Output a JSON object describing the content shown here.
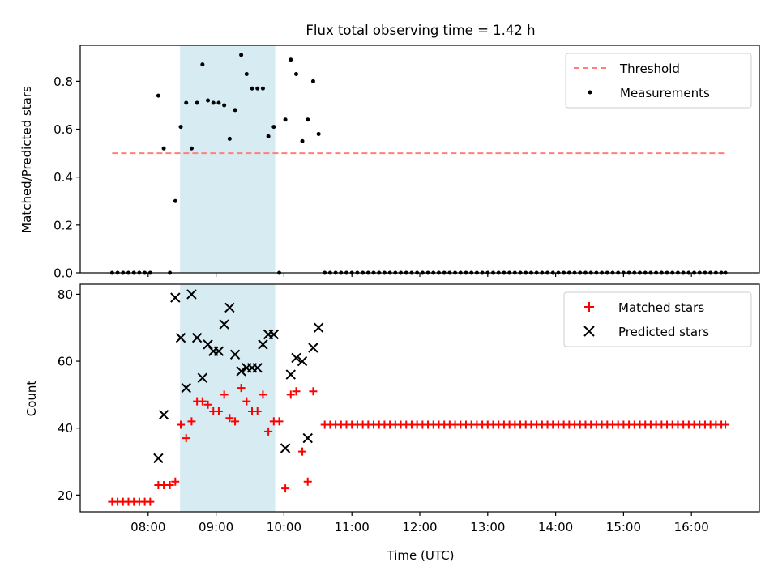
{
  "title": "Flux total observing time = 1.42 h",
  "xlabel": "Time (UTC)",
  "x_ticks": [
    "08:00",
    "09:00",
    "10:00",
    "11:00",
    "12:00",
    "13:00",
    "14:00",
    "15:00",
    "16:00"
  ],
  "x_tick_hours": [
    8,
    9,
    10,
    11,
    12,
    13,
    14,
    15,
    16
  ],
  "x_range_hours": [
    7.0,
    17.0
  ],
  "shaded_interval_hours": [
    8.47,
    9.87
  ],
  "colors": {
    "threshold": "#ff7f7f",
    "measurement": "#000000",
    "matched": "#ff0000",
    "predicted": "#000000",
    "shade": "#add8e6"
  },
  "chart_data": [
    {
      "type": "scatter",
      "title": "Flux total observing time = 1.42 h",
      "xlabel": "",
      "ylabel": "Matched/Predicted stars",
      "ylim": [
        0,
        0.95
      ],
      "y_ticks": [
        "0.0",
        "0.2",
        "0.4",
        "0.6",
        "0.8"
      ],
      "y_tick_values": [
        0,
        0.2,
        0.4,
        0.6,
        0.8
      ],
      "legend_position": "top-right",
      "threshold": {
        "name": "Threshold",
        "value": 0.5,
        "x_range": [
          7.47,
          16.5
        ]
      },
      "measurements": {
        "name": "Measurements",
        "points": [
          [
            7.47,
            0
          ],
          [
            7.55,
            0
          ],
          [
            7.63,
            0
          ],
          [
            7.71,
            0
          ],
          [
            7.79,
            0
          ],
          [
            7.87,
            0
          ],
          [
            7.95,
            0
          ],
          [
            8.03,
            0
          ],
          [
            8.15,
            0.74
          ],
          [
            8.23,
            0.52
          ],
          [
            8.32,
            0
          ],
          [
            8.4,
            0.3
          ],
          [
            8.48,
            0.61
          ],
          [
            8.56,
            0.71
          ],
          [
            8.64,
            0.52
          ],
          [
            8.72,
            0.71
          ],
          [
            8.8,
            0.87
          ],
          [
            8.88,
            0.72
          ],
          [
            8.96,
            0.71
          ],
          [
            9.04,
            0.71
          ],
          [
            9.12,
            0.7
          ],
          [
            9.2,
            0.56
          ],
          [
            9.28,
            0.68
          ],
          [
            9.37,
            0.91
          ],
          [
            9.45,
            0.83
          ],
          [
            9.53,
            0.77
          ],
          [
            9.61,
            0.77
          ],
          [
            9.69,
            0.77
          ],
          [
            9.77,
            0.57
          ],
          [
            9.85,
            0.61
          ],
          [
            9.93,
            0
          ],
          [
            10.02,
            0.64
          ],
          [
            10.1,
            0.89
          ],
          [
            10.18,
            0.83
          ],
          [
            10.27,
            0.55
          ],
          [
            10.35,
            0.64
          ],
          [
            10.43,
            0.8
          ],
          [
            10.51,
            0.58
          ],
          [
            10.6,
            0
          ],
          [
            10.68,
            0
          ],
          [
            10.76,
            0
          ],
          [
            10.84,
            0
          ],
          [
            10.92,
            0
          ],
          [
            11.0,
            0
          ],
          [
            11.08,
            0
          ],
          [
            11.16,
            0
          ],
          [
            11.24,
            0
          ],
          [
            11.32,
            0
          ],
          [
            11.4,
            0
          ],
          [
            11.48,
            0
          ],
          [
            11.56,
            0
          ],
          [
            11.64,
            0
          ],
          [
            11.72,
            0
          ],
          [
            11.8,
            0
          ],
          [
            11.88,
            0
          ],
          [
            11.96,
            0
          ],
          [
            12.04,
            0
          ],
          [
            12.12,
            0
          ],
          [
            12.2,
            0
          ],
          [
            12.28,
            0
          ],
          [
            12.36,
            0
          ],
          [
            12.44,
            0
          ],
          [
            12.52,
            0
          ],
          [
            12.6,
            0
          ],
          [
            12.68,
            0
          ],
          [
            12.76,
            0
          ],
          [
            12.84,
            0
          ],
          [
            12.92,
            0
          ],
          [
            13.0,
            0
          ],
          [
            13.08,
            0
          ],
          [
            13.16,
            0
          ],
          [
            13.24,
            0
          ],
          [
            13.32,
            0
          ],
          [
            13.4,
            0
          ],
          [
            13.48,
            0
          ],
          [
            13.56,
            0
          ],
          [
            13.64,
            0
          ],
          [
            13.72,
            0
          ],
          [
            13.8,
            0
          ],
          [
            13.88,
            0
          ],
          [
            13.96,
            0
          ],
          [
            14.04,
            0
          ],
          [
            14.12,
            0
          ],
          [
            14.2,
            0
          ],
          [
            14.28,
            0
          ],
          [
            14.36,
            0
          ],
          [
            14.44,
            0
          ],
          [
            14.52,
            0
          ],
          [
            14.6,
            0
          ],
          [
            14.68,
            0
          ],
          [
            14.76,
            0
          ],
          [
            14.84,
            0
          ],
          [
            14.92,
            0
          ],
          [
            15.0,
            0
          ],
          [
            15.08,
            0
          ],
          [
            15.16,
            0
          ],
          [
            15.24,
            0
          ],
          [
            15.32,
            0
          ],
          [
            15.4,
            0
          ],
          [
            15.48,
            0
          ],
          [
            15.56,
            0
          ],
          [
            15.64,
            0
          ],
          [
            15.72,
            0
          ],
          [
            15.8,
            0
          ],
          [
            15.88,
            0
          ],
          [
            15.96,
            0
          ],
          [
            16.04,
            0
          ],
          [
            16.12,
            0
          ],
          [
            16.2,
            0
          ],
          [
            16.28,
            0
          ],
          [
            16.36,
            0
          ],
          [
            16.44,
            0
          ],
          [
            16.5,
            0
          ]
        ]
      }
    },
    {
      "type": "scatter",
      "title": "",
      "xlabel": "Time (UTC)",
      "ylabel": "Count",
      "ylim": [
        15,
        83
      ],
      "y_ticks": [
        "20",
        "40",
        "60",
        "80"
      ],
      "y_tick_values": [
        20,
        40,
        60,
        80
      ],
      "legend_position": "top-right",
      "series": [
        {
          "name": "Matched stars",
          "marker": "plus",
          "points": [
            [
              7.47,
              18
            ],
            [
              7.55,
              18
            ],
            [
              7.63,
              18
            ],
            [
              7.71,
              18
            ],
            [
              7.79,
              18
            ],
            [
              7.87,
              18
            ],
            [
              7.95,
              18
            ],
            [
              8.03,
              18
            ],
            [
              8.15,
              23
            ],
            [
              8.23,
              23
            ],
            [
              8.32,
              23
            ],
            [
              8.4,
              24
            ],
            [
              8.48,
              41
            ],
            [
              8.56,
              37
            ],
            [
              8.64,
              42
            ],
            [
              8.72,
              48
            ],
            [
              8.8,
              48
            ],
            [
              8.88,
              47
            ],
            [
              8.96,
              45
            ],
            [
              9.04,
              45
            ],
            [
              9.12,
              50
            ],
            [
              9.2,
              43
            ],
            [
              9.28,
              42
            ],
            [
              9.37,
              52
            ],
            [
              9.45,
              48
            ],
            [
              9.53,
              45
            ],
            [
              9.61,
              45
            ],
            [
              9.69,
              50
            ],
            [
              9.77,
              39
            ],
            [
              9.85,
              42
            ],
            [
              9.93,
              42
            ],
            [
              10.02,
              22
            ],
            [
              10.1,
              50
            ],
            [
              10.18,
              51
            ],
            [
              10.27,
              33
            ],
            [
              10.35,
              24
            ],
            [
              10.43,
              51
            ],
            [
              10.6,
              41
            ],
            [
              10.68,
              41
            ],
            [
              10.76,
              41
            ],
            [
              10.84,
              41
            ],
            [
              10.92,
              41
            ],
            [
              11.0,
              41
            ],
            [
              11.08,
              41
            ],
            [
              11.16,
              41
            ],
            [
              11.24,
              41
            ],
            [
              11.32,
              41
            ],
            [
              11.4,
              41
            ],
            [
              11.48,
              41
            ],
            [
              11.56,
              41
            ],
            [
              11.64,
              41
            ],
            [
              11.72,
              41
            ],
            [
              11.8,
              41
            ],
            [
              11.88,
              41
            ],
            [
              11.96,
              41
            ],
            [
              12.04,
              41
            ],
            [
              12.12,
              41
            ],
            [
              12.2,
              41
            ],
            [
              12.28,
              41
            ],
            [
              12.36,
              41
            ],
            [
              12.44,
              41
            ],
            [
              12.52,
              41
            ],
            [
              12.6,
              41
            ],
            [
              12.68,
              41
            ],
            [
              12.76,
              41
            ],
            [
              12.84,
              41
            ],
            [
              12.92,
              41
            ],
            [
              13.0,
              41
            ],
            [
              13.08,
              41
            ],
            [
              13.16,
              41
            ],
            [
              13.24,
              41
            ],
            [
              13.32,
              41
            ],
            [
              13.4,
              41
            ],
            [
              13.48,
              41
            ],
            [
              13.56,
              41
            ],
            [
              13.64,
              41
            ],
            [
              13.72,
              41
            ],
            [
              13.8,
              41
            ],
            [
              13.88,
              41
            ],
            [
              13.96,
              41
            ],
            [
              14.04,
              41
            ],
            [
              14.12,
              41
            ],
            [
              14.2,
              41
            ],
            [
              14.28,
              41
            ],
            [
              14.36,
              41
            ],
            [
              14.44,
              41
            ],
            [
              14.52,
              41
            ],
            [
              14.6,
              41
            ],
            [
              14.68,
              41
            ],
            [
              14.76,
              41
            ],
            [
              14.84,
              41
            ],
            [
              14.92,
              41
            ],
            [
              15.0,
              41
            ],
            [
              15.08,
              41
            ],
            [
              15.16,
              41
            ],
            [
              15.24,
              41
            ],
            [
              15.32,
              41
            ],
            [
              15.4,
              41
            ],
            [
              15.48,
              41
            ],
            [
              15.56,
              41
            ],
            [
              15.64,
              41
            ],
            [
              15.72,
              41
            ],
            [
              15.8,
              41
            ],
            [
              15.88,
              41
            ],
            [
              15.96,
              41
            ],
            [
              16.04,
              41
            ],
            [
              16.12,
              41
            ],
            [
              16.2,
              41
            ],
            [
              16.28,
              41
            ],
            [
              16.36,
              41
            ],
            [
              16.44,
              41
            ],
            [
              16.5,
              41
            ]
          ]
        },
        {
          "name": "Predicted stars",
          "marker": "x",
          "points": [
            [
              8.15,
              31
            ],
            [
              8.23,
              44
            ],
            [
              8.4,
              79
            ],
            [
              8.48,
              67
            ],
            [
              8.56,
              52
            ],
            [
              8.64,
              80
            ],
            [
              8.72,
              67
            ],
            [
              8.8,
              55
            ],
            [
              8.88,
              65
            ],
            [
              8.96,
              63
            ],
            [
              9.04,
              63
            ],
            [
              9.12,
              71
            ],
            [
              9.2,
              76
            ],
            [
              9.28,
              62
            ],
            [
              9.37,
              57
            ],
            [
              9.45,
              58
            ],
            [
              9.53,
              58
            ],
            [
              9.61,
              58
            ],
            [
              9.69,
              65
            ],
            [
              9.77,
              68
            ],
            [
              9.85,
              68
            ],
            [
              10.02,
              34
            ],
            [
              10.1,
              56
            ],
            [
              10.18,
              61
            ],
            [
              10.27,
              60
            ],
            [
              10.35,
              37
            ],
            [
              10.43,
              64
            ],
            [
              10.51,
              70
            ]
          ]
        }
      ]
    }
  ]
}
